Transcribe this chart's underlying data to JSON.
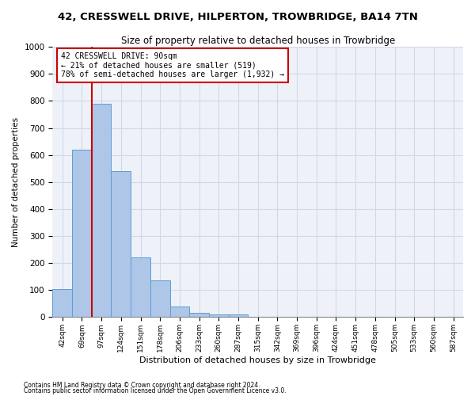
{
  "title": "42, CRESSWELL DRIVE, HILPERTON, TROWBRIDGE, BA14 7TN",
  "subtitle": "Size of property relative to detached houses in Trowbridge",
  "xlabel": "Distribution of detached houses by size in Trowbridge",
  "ylabel": "Number of detached properties",
  "bin_labels": [
    "42sqm",
    "69sqm",
    "97sqm",
    "124sqm",
    "151sqm",
    "178sqm",
    "206sqm",
    "233sqm",
    "260sqm",
    "287sqm",
    "315sqm",
    "342sqm",
    "369sqm",
    "396sqm",
    "424sqm",
    "451sqm",
    "478sqm",
    "505sqm",
    "533sqm",
    "560sqm",
    "587sqm"
  ],
  "bar_values": [
    105,
    620,
    790,
    540,
    220,
    135,
    40,
    16,
    10,
    11,
    0,
    0,
    0,
    0,
    0,
    0,
    0,
    0,
    0,
    0,
    0
  ],
  "bar_color": "#aec6e8",
  "bar_edgecolor": "#5a9fd4",
  "vline_color": "#cc0000",
  "annotation_text": "42 CRESSWELL DRIVE: 90sqm\n← 21% of detached houses are smaller (519)\n78% of semi-detached houses are larger (1,932) →",
  "annotation_box_color": "#cc0000",
  "ylim": [
    0,
    1000
  ],
  "yticks": [
    0,
    100,
    200,
    300,
    400,
    500,
    600,
    700,
    800,
    900,
    1000
  ],
  "grid_color": "#d0d8e8",
  "background_color": "#eef2f8",
  "footer1": "Contains HM Land Registry data © Crown copyright and database right 2024.",
  "footer2": "Contains public sector information licensed under the Open Government Licence v3.0."
}
